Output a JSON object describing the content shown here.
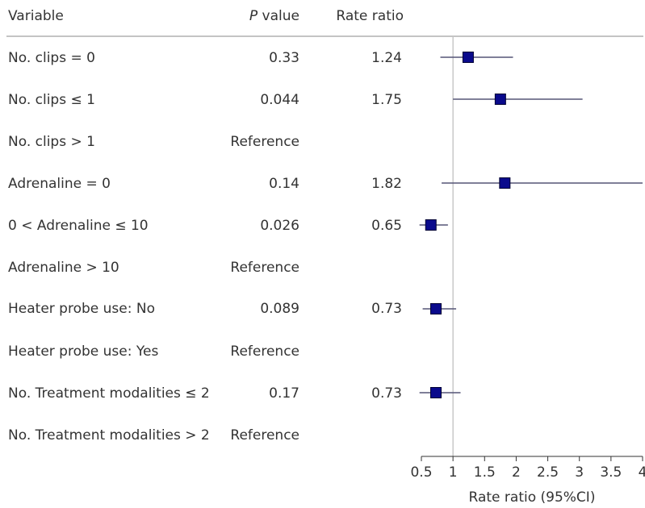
{
  "table": {
    "headers": {
      "variable": "Variable",
      "p_italic": "P",
      "p_rest": " value",
      "rate": "Rate ratio"
    },
    "rows": [
      {
        "variable": "No. clips = 0",
        "p": "0.33",
        "rate": "1.24"
      },
      {
        "variable": "No. clips ≤ 1",
        "p": "0.044",
        "rate": "1.75"
      },
      {
        "variable": "No. clips > 1",
        "p": "Reference",
        "rate": ""
      },
      {
        "variable": "Adrenaline = 0",
        "p": "0.14",
        "rate": "1.82"
      },
      {
        "variable": "0 < Adrenaline ≤ 10",
        "p": "0.026",
        "rate": "0.65"
      },
      {
        "variable": "Adrenaline > 10",
        "p": "Reference",
        "rate": ""
      },
      {
        "variable": "Heater probe use: No",
        "p": "0.089",
        "rate": "0.73"
      },
      {
        "variable": "Heater probe use: Yes",
        "p": "Reference",
        "rate": ""
      },
      {
        "variable": "No. Treatment modalities ≤ 2",
        "p": "0.17",
        "rate": "0.73"
      },
      {
        "variable": "No. Treatment modalities > 2",
        "p": "Reference",
        "rate": ""
      }
    ]
  },
  "chart_data": {
    "type": "forest",
    "xlabel": "Rate ratio (95%CI)",
    "xlim": [
      0.5,
      4
    ],
    "reference_line": 1,
    "ticks": [
      0.5,
      1,
      1.5,
      2,
      2.5,
      3,
      3.5,
      4
    ],
    "tick_labels": [
      "0.5",
      "1",
      "1.5",
      "2",
      "2.5",
      "3",
      "3.5",
      "4"
    ],
    "points": [
      {
        "row": 0,
        "estimate": 1.24,
        "ci": [
          0.8,
          1.95
        ]
      },
      {
        "row": 1,
        "estimate": 1.75,
        "ci": [
          1.0,
          3.05
        ]
      },
      {
        "row": 3,
        "estimate": 1.82,
        "ci": [
          0.82,
          4.0
        ]
      },
      {
        "row": 4,
        "estimate": 0.65,
        "ci": [
          0.47,
          0.92
        ]
      },
      {
        "row": 6,
        "estimate": 0.73,
        "ci": [
          0.52,
          1.05
        ]
      },
      {
        "row": 8,
        "estimate": 0.73,
        "ci": [
          0.47,
          1.12
        ]
      }
    ],
    "colors": {
      "marker": "#0a0a8c",
      "marker_edge": "#000033",
      "ci_line": "#555577",
      "reference": "#bbbbbb",
      "axis": "#333333"
    }
  }
}
